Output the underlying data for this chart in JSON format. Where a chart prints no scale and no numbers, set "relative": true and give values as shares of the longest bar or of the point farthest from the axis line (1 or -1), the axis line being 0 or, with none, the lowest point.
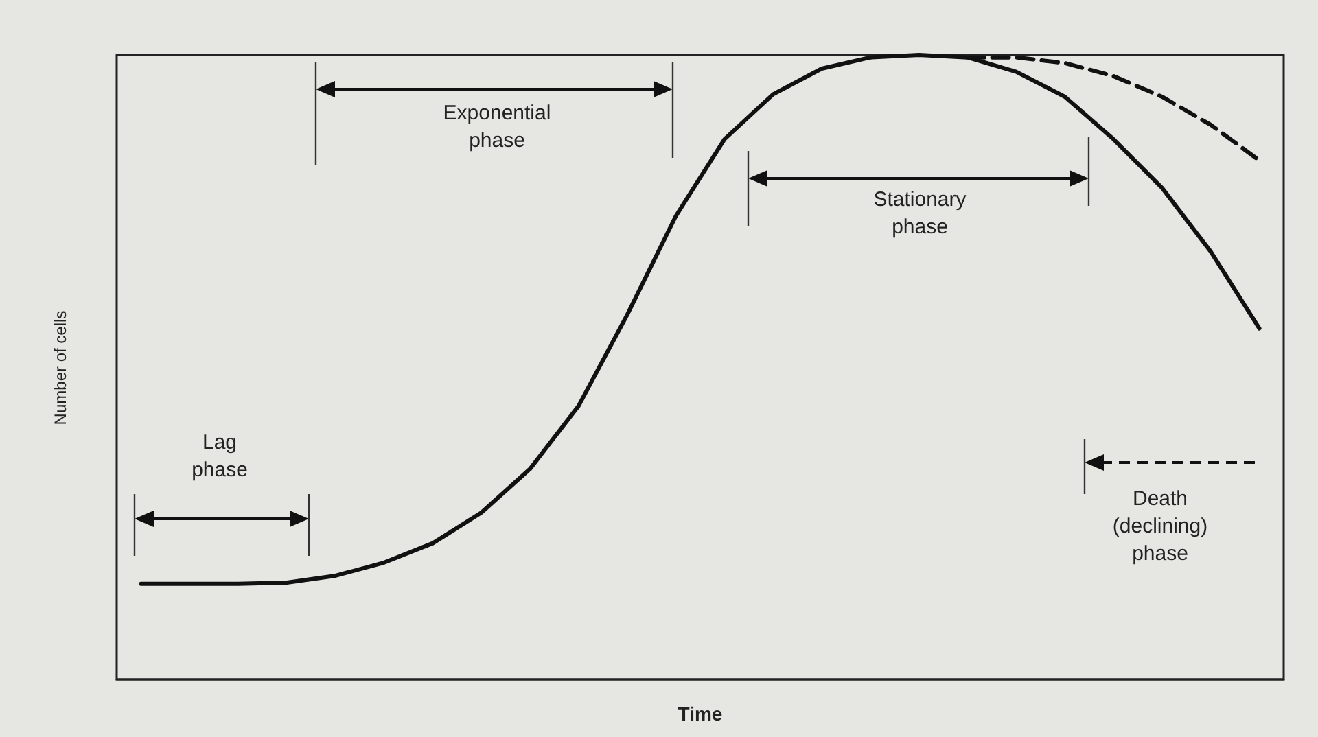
{
  "chart_data": {
    "type": "line",
    "relative": true,
    "xlabel": "Time",
    "ylabel": "Number of cells",
    "categories": [
      null,
      null,
      null,
      null,
      null,
      null,
      null,
      null,
      null,
      null,
      null,
      null,
      null,
      null,
      null,
      null,
      null,
      null,
      null,
      null,
      null,
      null,
      null,
      null
    ],
    "series": [
      {
        "color": "#111111",
        "line_style": "solid",
        "values": [
          0.153,
          0.153,
          0.153,
          0.155,
          0.166,
          0.187,
          0.218,
          0.267,
          0.337,
          0.438,
          0.584,
          0.742,
          0.865,
          0.937,
          0.978,
          0.996,
          1.0,
          0.996,
          0.973,
          0.933,
          0.865,
          0.787,
          0.685,
          0.562
        ]
      },
      {
        "color": "#111111",
        "line_style": "dashed",
        "values": [
          null,
          null,
          null,
          null,
          null,
          null,
          null,
          null,
          null,
          null,
          null,
          null,
          null,
          null,
          null,
          null,
          null,
          0.996,
          0.996,
          0.987,
          0.966,
          0.933,
          0.888,
          0.831
        ]
      }
    ],
    "marker": "none",
    "grid": false,
    "annotations": [
      "Lag phase",
      "Exponential phase",
      "Stationary phase",
      "Death (declining) phase"
    ]
  }
}
